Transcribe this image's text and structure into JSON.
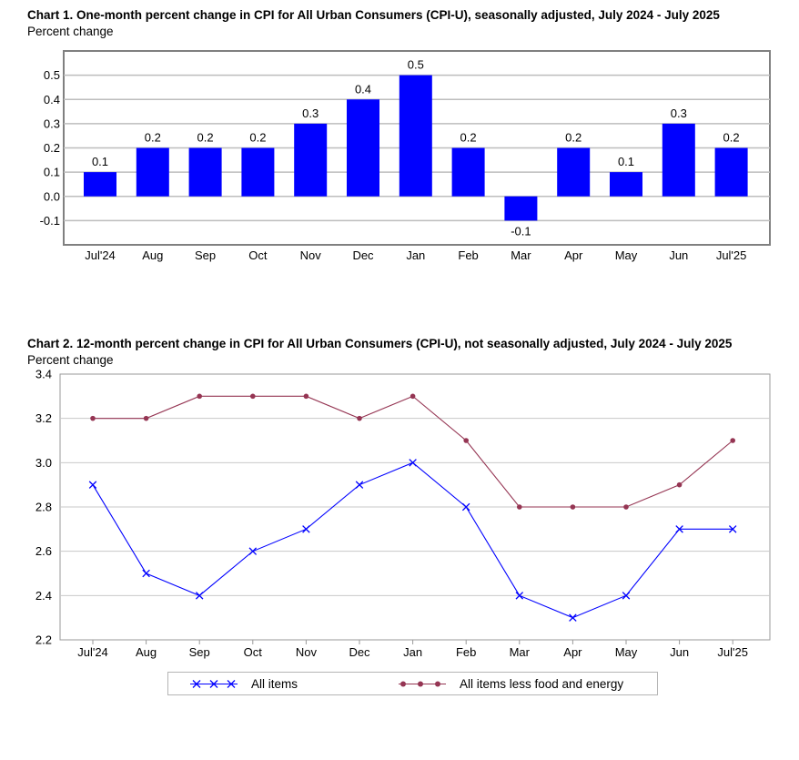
{
  "chart_data": [
    {
      "type": "bar",
      "title": "Chart 1. One-month percent change in CPI for All Urban Consumers (CPI-U), seasonally adjusted, July 2024 - July 2025",
      "ylabel": "Percent change",
      "xlabel": "",
      "categories": [
        "Jul'24",
        "Aug",
        "Sep",
        "Oct",
        "Nov",
        "Dec",
        "Jan",
        "Feb",
        "Mar",
        "Apr",
        "May",
        "Jun",
        "Jul'25"
      ],
      "values": [
        0.1,
        0.2,
        0.2,
        0.2,
        0.3,
        0.4,
        0.5,
        0.2,
        -0.1,
        0.2,
        0.1,
        0.3,
        0.2
      ],
      "data_labels": [
        "0.1",
        "0.2",
        "0.2",
        "0.2",
        "0.3",
        "0.4",
        "0.5",
        "0.2",
        "-0.1",
        "0.2",
        "0.1",
        "0.3",
        "0.2"
      ],
      "yticks": [
        -0.1,
        0.0,
        0.1,
        0.2,
        0.3,
        0.4,
        0.5
      ],
      "ytick_labels": [
        "-0.1",
        "0.0",
        "0.1",
        "0.2",
        "0.3",
        "0.4",
        "0.5"
      ],
      "ylim": [
        -0.2,
        0.6
      ],
      "grid": true,
      "color": "#0000ff"
    },
    {
      "type": "line",
      "title": "Chart 2. 12-month percent change in CPI for All Urban Consumers (CPI-U), not seasonally adjusted, July 2024 - July 2025",
      "ylabel": "Percent change",
      "xlabel": "",
      "categories": [
        "Jul'24",
        "Aug",
        "Sep",
        "Oct",
        "Nov",
        "Dec",
        "Jan",
        "Feb",
        "Mar",
        "Apr",
        "May",
        "Jun",
        "Jul'25"
      ],
      "series": [
        {
          "name": "All items",
          "marker": "x",
          "color": "#0000ff",
          "values": [
            2.9,
            2.5,
            2.4,
            2.6,
            2.7,
            2.9,
            3.0,
            2.8,
            2.4,
            2.3,
            2.4,
            2.7,
            2.7
          ]
        },
        {
          "name": "All items less food and energy",
          "marker": "circle",
          "color": "#953553",
          "values": [
            3.2,
            3.2,
            3.3,
            3.3,
            3.3,
            3.2,
            3.3,
            3.1,
            2.8,
            2.8,
            2.8,
            2.9,
            3.1
          ]
        }
      ],
      "yticks": [
        2.2,
        2.4,
        2.6,
        2.8,
        3.0,
        3.2,
        3.4
      ],
      "ytick_labels": [
        "2.2",
        "2.4",
        "2.6",
        "2.8",
        "3.0",
        "3.2",
        "3.4"
      ],
      "ylim": [
        2.2,
        3.4
      ],
      "grid": true,
      "legend_position": "bottom-center"
    }
  ]
}
